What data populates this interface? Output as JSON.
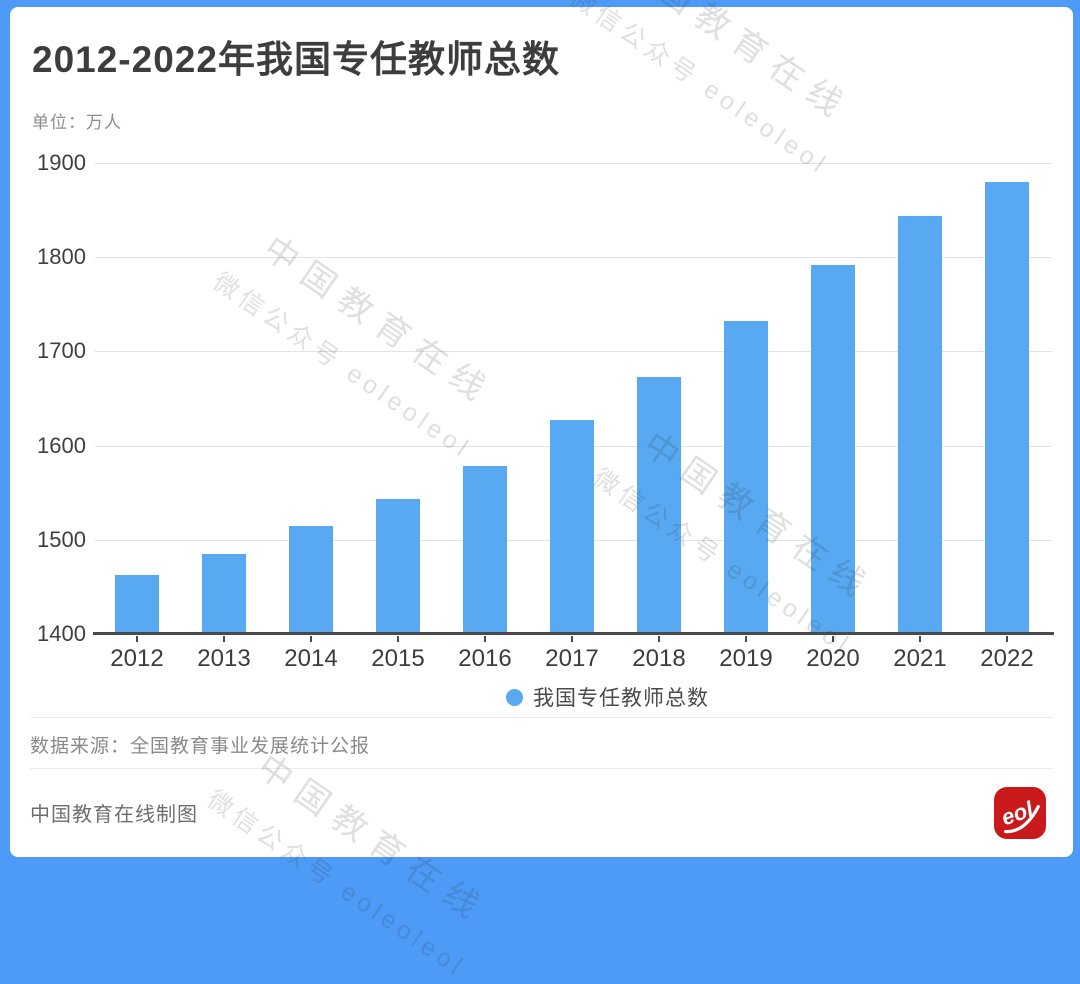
{
  "title": "2012-2022年我国专任教师总数",
  "unit_label": "单位：万人",
  "legend": {
    "label": "我国专任教师总数"
  },
  "source_line": "数据来源：全国教育事业发展统计公报",
  "credit_line": "中国教育在线制图",
  "logo_text": "eol",
  "watermark": {
    "line1": "中国教育在线",
    "line2": "微信公众号 eoleoleol"
  },
  "colors": {
    "bar": "#58A9F1",
    "frame": "#4D9BF7",
    "grid": "#E3E3E3",
    "axis": "#4A4A4A",
    "title_text": "#3D3D3D",
    "muted_text": "#8A8A8A",
    "logo_red": "#C9191B"
  },
  "chart_data": {
    "type": "bar",
    "title": "2012-2022年我国专任教师总数",
    "unit": "万人",
    "categories": [
      "2012",
      "2013",
      "2014",
      "2015",
      "2016",
      "2017",
      "2018",
      "2019",
      "2020",
      "2021",
      "2022"
    ],
    "series": [
      {
        "name": "我国专任教师总数",
        "values": [
          1463,
          1485,
          1515,
          1543,
          1578,
          1627,
          1673,
          1732,
          1792,
          1844,
          1880
        ]
      }
    ],
    "xlabel": "",
    "ylabel": "万人",
    "ylim": [
      1400,
      1900
    ],
    "yticks": [
      1400,
      1500,
      1600,
      1700,
      1800,
      1900
    ],
    "grid": true,
    "legend_position": "bottom"
  }
}
